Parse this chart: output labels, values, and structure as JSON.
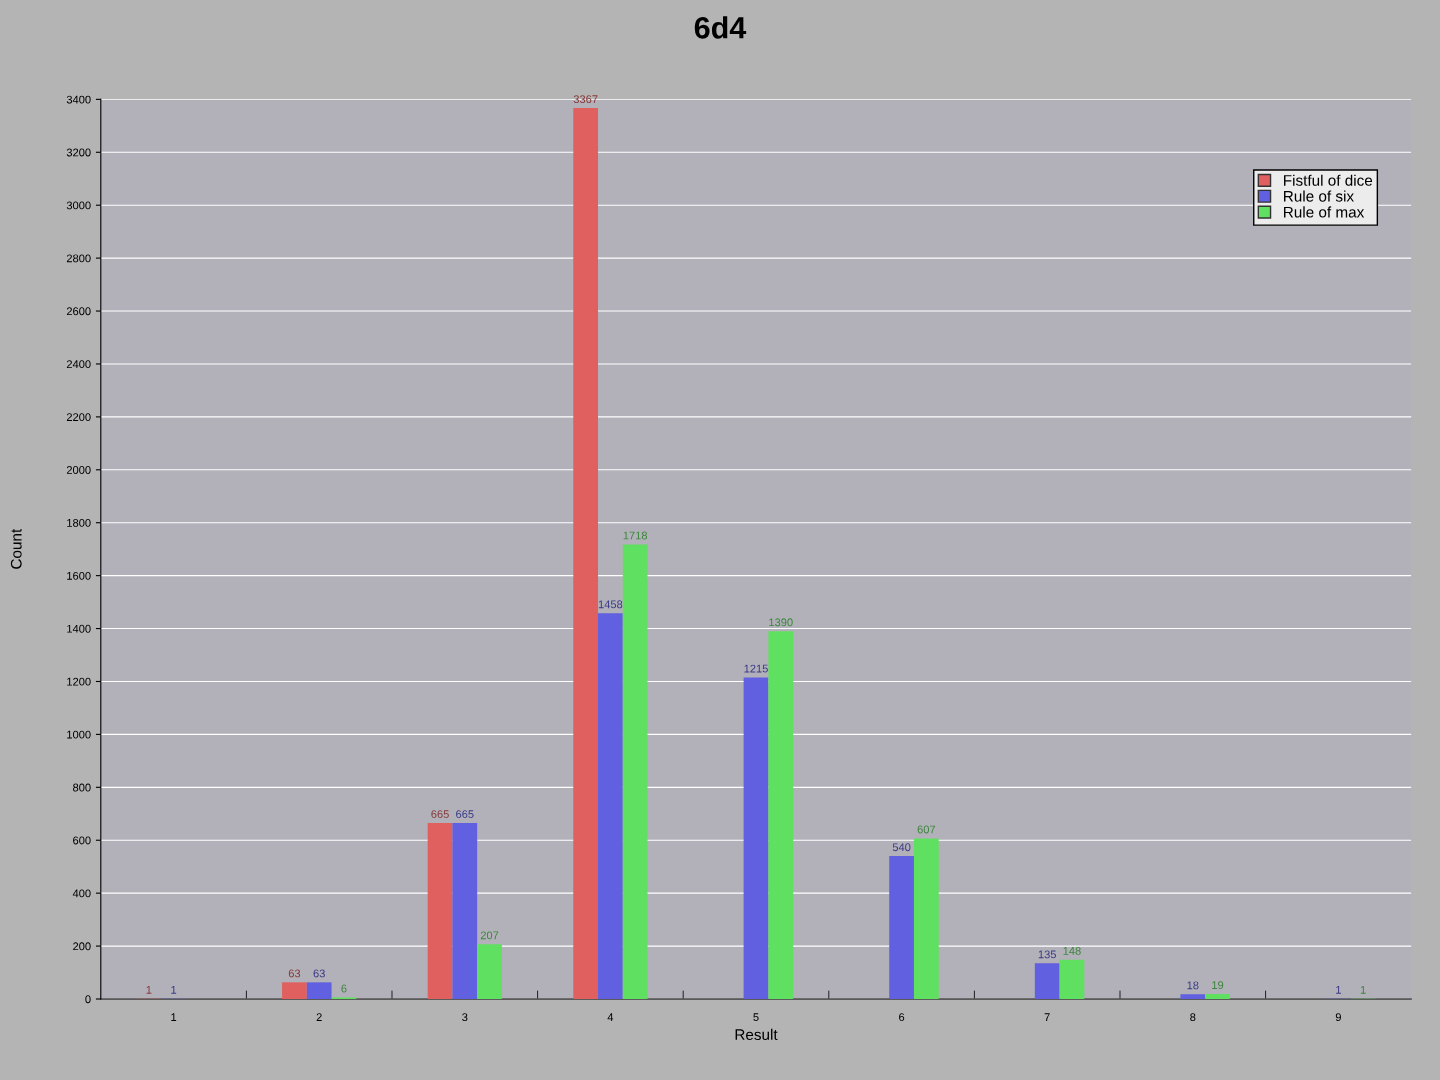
{
  "chart_data": {
    "type": "bar",
    "title": "6d4",
    "xlabel": "Result",
    "ylabel": "Count",
    "categories": [
      "1",
      "2",
      "3",
      "4",
      "5",
      "6",
      "7",
      "8",
      "9"
    ],
    "series": [
      {
        "name": "Fistful of dice",
        "color": "#e06060",
        "values": [
          1,
          63,
          665,
          3367,
          null,
          null,
          null,
          null,
          null
        ]
      },
      {
        "name": "Rule of six",
        "color": "#6060e0",
        "values": [
          1,
          63,
          665,
          1458,
          1215,
          540,
          135,
          18,
          1
        ]
      },
      {
        "name": "Rule of max",
        "color": "#60e060",
        "values": [
          null,
          6,
          207,
          1718,
          1390,
          607,
          148,
          19,
          1
        ]
      }
    ],
    "ylim": [
      0,
      3400
    ],
    "yticks": [
      0,
      200,
      400,
      600,
      800,
      1000,
      1200,
      1400,
      1600,
      1800,
      2000,
      2200,
      2400,
      2600,
      2800,
      3000,
      3200,
      3400
    ],
    "grid": "y",
    "legend": "top right",
    "data_labels": true
  }
}
